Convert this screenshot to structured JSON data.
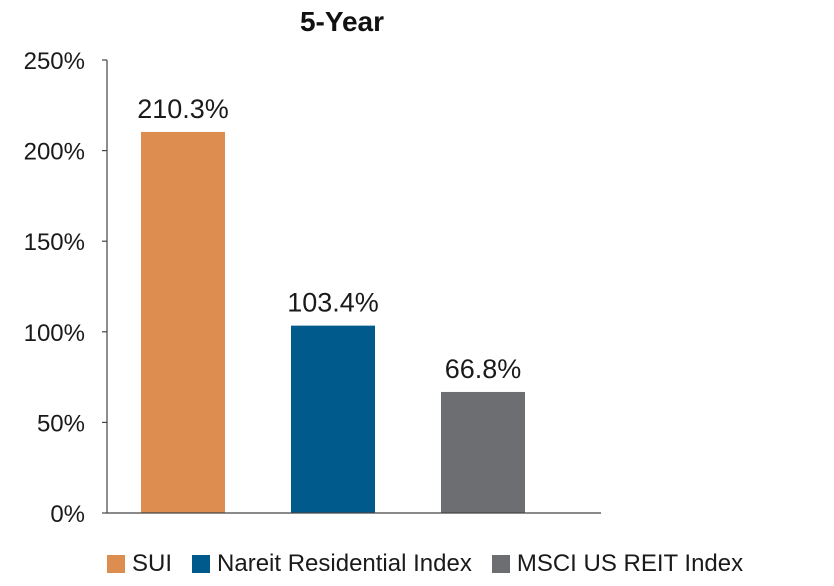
{
  "chart_data": {
    "type": "bar",
    "title": "5-Year",
    "xlabel": "",
    "ylabel": "",
    "categories": [
      "SUI",
      "Nareit Residential Index",
      "MSCI US REIT Index"
    ],
    "values": [
      210.3,
      103.4,
      66.8
    ],
    "value_labels": [
      "210.3%",
      "103.4%",
      "66.8%"
    ],
    "colors": [
      "#DC8D4F",
      "#005A8C",
      "#6D6E71"
    ],
    "ylim": [
      0,
      250
    ],
    "yticks": [
      0,
      50,
      100,
      150,
      200,
      250
    ],
    "ytick_labels": [
      "0%",
      "50%",
      "100%",
      "150%",
      "200%",
      "250%"
    ],
    "grid": false,
    "legend_position": "bottom"
  },
  "legend": [
    {
      "label": "SUI",
      "color": "#DC8D4F"
    },
    {
      "label": "Nareit Residential Index",
      "color": "#005A8C"
    },
    {
      "label": "MSCI US REIT Index",
      "color": "#6D6E71"
    }
  ]
}
